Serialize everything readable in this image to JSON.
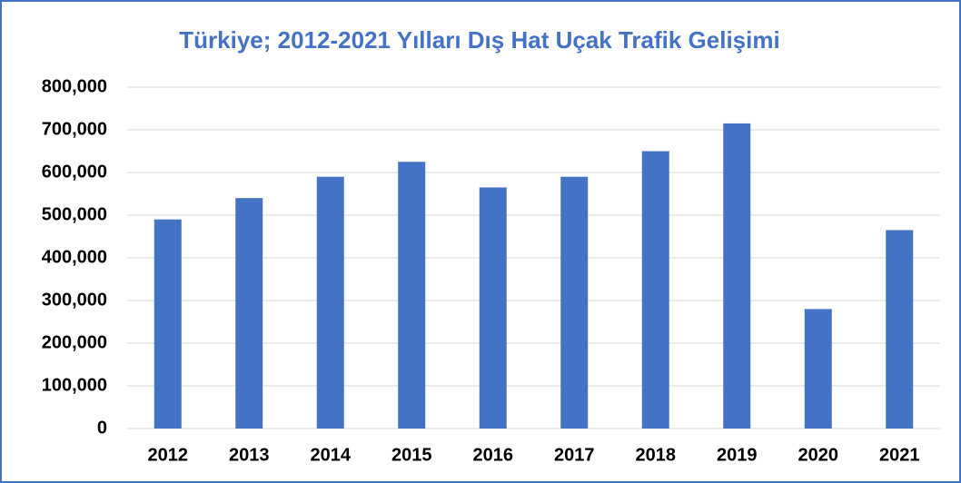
{
  "chart_data": {
    "type": "bar",
    "title": "Türkiye; 2012-2021 Yılları Dış Hat Uçak Trafik Gelişimi",
    "categories": [
      "2012",
      "2013",
      "2014",
      "2015",
      "2016",
      "2017",
      "2018",
      "2019",
      "2020",
      "2021"
    ],
    "values": [
      490000,
      540000,
      590000,
      625000,
      565000,
      590000,
      650000,
      715000,
      280000,
      465000
    ],
    "color": "#4472c4",
    "ylim": [
      0,
      800000
    ],
    "yticks": [
      0,
      {
        "value": 100000,
        "label": "100,000"
      },
      {
        "value": 200000,
        "label": "200,000"
      },
      {
        "value": 300000,
        "label": "300,000"
      },
      {
        "value": 400000,
        "label": "400,000"
      },
      {
        "value": 500000,
        "label": "500,000"
      },
      {
        "value": 600000,
        "label": "600,000"
      },
      {
        "value": 700000,
        "label": "700,000"
      },
      {
        "value": 800000,
        "label": "800,000"
      }
    ],
    "grid": true
  }
}
